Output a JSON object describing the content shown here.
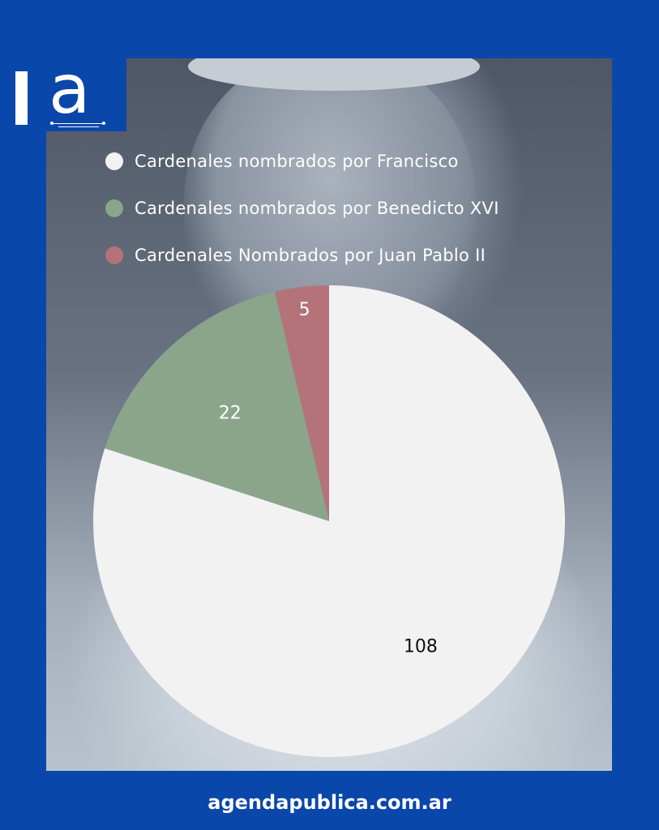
{
  "brand": {
    "logo_text": "a",
    "website": "agendapublica.com.ar"
  },
  "colors": {
    "background": "#0a47ab",
    "francisco": "#f2f2f2",
    "benedicto": "#8ba58b",
    "juan_pablo": "#b37379"
  },
  "chart_data": {
    "type": "pie",
    "title": "",
    "legend_placement": "top",
    "series": [
      {
        "name": "Cardenales nombrados por Francisco",
        "value": 108,
        "color": "#f2f2f2",
        "label_color": "#111111"
      },
      {
        "name": "Cardenales nombrados por Benedicto XVI",
        "value": 22,
        "color": "#8ba58b",
        "label_color": "#ffffff"
      },
      {
        "name": "Cardenales Nombrados por Juan Pablo II",
        "value": 5,
        "color": "#b37379",
        "label_color": "#ffffff"
      }
    ]
  }
}
